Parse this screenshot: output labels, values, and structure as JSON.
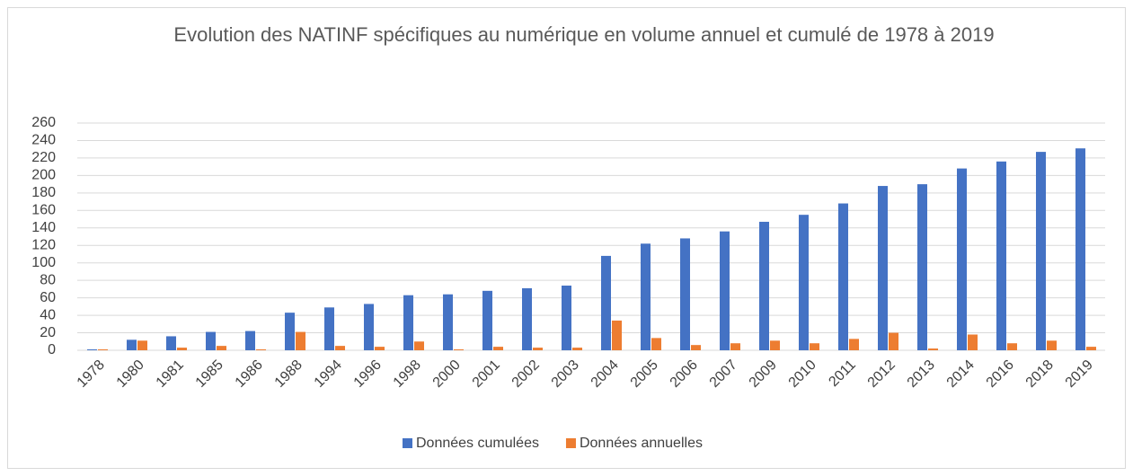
{
  "chart_data": {
    "type": "bar",
    "title": "Evolution des NATINF spécifiques au numérique en volume annuel et cumulé de 1978 à 2019",
    "categories": [
      "1978",
      "1980",
      "1981",
      "1985",
      "1986",
      "1988",
      "1994",
      "1996",
      "1998",
      "2000",
      "2001",
      "2002",
      "2003",
      "2004",
      "2005",
      "2006",
      "2007",
      "2009",
      "2010",
      "2011",
      "2012",
      "2013",
      "2014",
      "2016",
      "2018",
      "2019"
    ],
    "series": [
      {
        "name": "Données cumulées",
        "color": "#4472c4",
        "values": [
          1,
          12,
          16,
          21,
          22,
          43,
          49,
          53,
          63,
          64,
          68,
          71,
          74,
          108,
          122,
          128,
          136,
          147,
          155,
          168,
          188,
          190,
          208,
          216,
          227,
          231
        ]
      },
      {
        "name": "Données annuelles",
        "color": "#ed7d31",
        "values": [
          1,
          11,
          3,
          5,
          1,
          21,
          5,
          4,
          10,
          1,
          4,
          3,
          3,
          34,
          14,
          6,
          8,
          11,
          8,
          13,
          20,
          2,
          18,
          8,
          11,
          4
        ]
      }
    ],
    "ylim": [
      0,
      260
    ],
    "yticks": [
      0,
      20,
      40,
      60,
      80,
      100,
      120,
      140,
      160,
      180,
      200,
      220,
      240,
      260
    ],
    "grid": true,
    "legend": "bottom"
  }
}
